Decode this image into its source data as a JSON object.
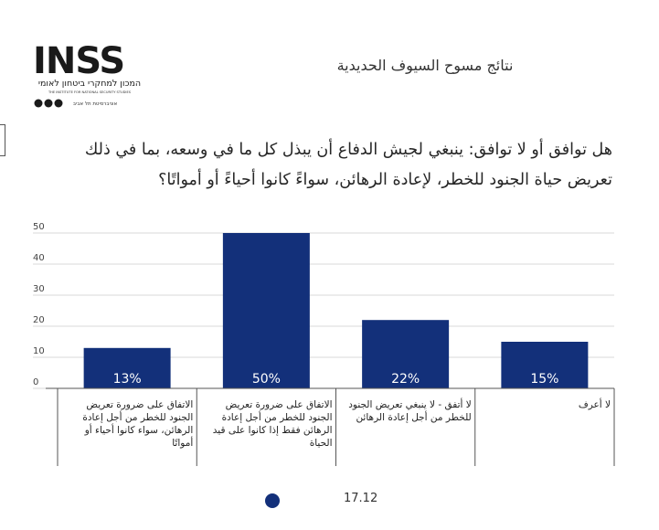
{
  "logo": {
    "wordmark": "INSS",
    "hebrew_name": "המכון למחקרי ביטחון לאומי",
    "english_name": "THE INSTITUTE FOR NATIONAL SECURITY STUDIES",
    "university": "אוניברסיטת תל אביב"
  },
  "subtitle": "نتائج مسوح السيوف الحديدية",
  "question": "هل توافق أو لا توافق: ينبغي لجيش الدفاع أن يبذل كل ما في وسعه، بما في ذلك تعريض حياة الجنود للخطر، لإعادة الرهائن، سواءً كانوا أحياءً أو أمواتًا؟",
  "chart_data": {
    "type": "bar",
    "categories": [
      "الاتفاق على ضرورة تعريض الجنود للخطر من أجل إعادة الرهائن، سواء كانوا أحياء أو أمواتًا",
      "الاتفاق على ضرورة تعريض الجنود للخطر من أجل إعادة الرهائن فقط إذا كانوا على قيد الحياة",
      "لا أتفق - لا ينبغي تعريض الجنود للخطر من أجل إعادة الرهائن",
      "لا أعرف"
    ],
    "values": [
      13,
      50,
      22,
      15
    ],
    "value_labels": [
      "13%",
      "50%",
      "22%",
      "15%"
    ],
    "ylim": [
      0,
      50
    ],
    "yticks": [
      "0",
      "10",
      "20",
      "30",
      "40",
      "50"
    ],
    "grid": true,
    "bar_color": "#13307a"
  },
  "footer": {
    "date": "17.12",
    "dot_color": "#13307a"
  }
}
